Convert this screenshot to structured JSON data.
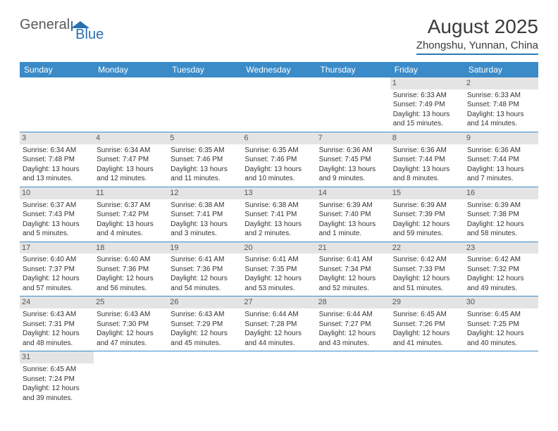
{
  "logo": {
    "text1": "General",
    "text2": "Blue"
  },
  "title": "August 2025",
  "subtitle": "Zhongshu, Yunnan, China",
  "colors": {
    "header_bg": "#3b8bc8",
    "header_text": "#ffffff",
    "daynum_bg": "#e4e4e4",
    "border": "#3b8bc8",
    "logo_blue": "#2a6fb0",
    "logo_gray": "#5a5a5a"
  },
  "dayHeaders": [
    "Sunday",
    "Monday",
    "Tuesday",
    "Wednesday",
    "Thursday",
    "Friday",
    "Saturday"
  ],
  "weeks": [
    [
      null,
      null,
      null,
      null,
      null,
      {
        "n": "1",
        "sr": "Sunrise: 6:33 AM",
        "ss": "Sunset: 7:49 PM",
        "dl": "Daylight: 13 hours and 15 minutes."
      },
      {
        "n": "2",
        "sr": "Sunrise: 6:33 AM",
        "ss": "Sunset: 7:48 PM",
        "dl": "Daylight: 13 hours and 14 minutes."
      }
    ],
    [
      {
        "n": "3",
        "sr": "Sunrise: 6:34 AM",
        "ss": "Sunset: 7:48 PM",
        "dl": "Daylight: 13 hours and 13 minutes."
      },
      {
        "n": "4",
        "sr": "Sunrise: 6:34 AM",
        "ss": "Sunset: 7:47 PM",
        "dl": "Daylight: 13 hours and 12 minutes."
      },
      {
        "n": "5",
        "sr": "Sunrise: 6:35 AM",
        "ss": "Sunset: 7:46 PM",
        "dl": "Daylight: 13 hours and 11 minutes."
      },
      {
        "n": "6",
        "sr": "Sunrise: 6:35 AM",
        "ss": "Sunset: 7:46 PM",
        "dl": "Daylight: 13 hours and 10 minutes."
      },
      {
        "n": "7",
        "sr": "Sunrise: 6:36 AM",
        "ss": "Sunset: 7:45 PM",
        "dl": "Daylight: 13 hours and 9 minutes."
      },
      {
        "n": "8",
        "sr": "Sunrise: 6:36 AM",
        "ss": "Sunset: 7:44 PM",
        "dl": "Daylight: 13 hours and 8 minutes."
      },
      {
        "n": "9",
        "sr": "Sunrise: 6:36 AM",
        "ss": "Sunset: 7:44 PM",
        "dl": "Daylight: 13 hours and 7 minutes."
      }
    ],
    [
      {
        "n": "10",
        "sr": "Sunrise: 6:37 AM",
        "ss": "Sunset: 7:43 PM",
        "dl": "Daylight: 13 hours and 5 minutes."
      },
      {
        "n": "11",
        "sr": "Sunrise: 6:37 AM",
        "ss": "Sunset: 7:42 PM",
        "dl": "Daylight: 13 hours and 4 minutes."
      },
      {
        "n": "12",
        "sr": "Sunrise: 6:38 AM",
        "ss": "Sunset: 7:41 PM",
        "dl": "Daylight: 13 hours and 3 minutes."
      },
      {
        "n": "13",
        "sr": "Sunrise: 6:38 AM",
        "ss": "Sunset: 7:41 PM",
        "dl": "Daylight: 13 hours and 2 minutes."
      },
      {
        "n": "14",
        "sr": "Sunrise: 6:39 AM",
        "ss": "Sunset: 7:40 PM",
        "dl": "Daylight: 13 hours and 1 minute."
      },
      {
        "n": "15",
        "sr": "Sunrise: 6:39 AM",
        "ss": "Sunset: 7:39 PM",
        "dl": "Daylight: 12 hours and 59 minutes."
      },
      {
        "n": "16",
        "sr": "Sunrise: 6:39 AM",
        "ss": "Sunset: 7:38 PM",
        "dl": "Daylight: 12 hours and 58 minutes."
      }
    ],
    [
      {
        "n": "17",
        "sr": "Sunrise: 6:40 AM",
        "ss": "Sunset: 7:37 PM",
        "dl": "Daylight: 12 hours and 57 minutes."
      },
      {
        "n": "18",
        "sr": "Sunrise: 6:40 AM",
        "ss": "Sunset: 7:36 PM",
        "dl": "Daylight: 12 hours and 56 minutes."
      },
      {
        "n": "19",
        "sr": "Sunrise: 6:41 AM",
        "ss": "Sunset: 7:36 PM",
        "dl": "Daylight: 12 hours and 54 minutes."
      },
      {
        "n": "20",
        "sr": "Sunrise: 6:41 AM",
        "ss": "Sunset: 7:35 PM",
        "dl": "Daylight: 12 hours and 53 minutes."
      },
      {
        "n": "21",
        "sr": "Sunrise: 6:41 AM",
        "ss": "Sunset: 7:34 PM",
        "dl": "Daylight: 12 hours and 52 minutes."
      },
      {
        "n": "22",
        "sr": "Sunrise: 6:42 AM",
        "ss": "Sunset: 7:33 PM",
        "dl": "Daylight: 12 hours and 51 minutes."
      },
      {
        "n": "23",
        "sr": "Sunrise: 6:42 AM",
        "ss": "Sunset: 7:32 PM",
        "dl": "Daylight: 12 hours and 49 minutes."
      }
    ],
    [
      {
        "n": "24",
        "sr": "Sunrise: 6:43 AM",
        "ss": "Sunset: 7:31 PM",
        "dl": "Daylight: 12 hours and 48 minutes."
      },
      {
        "n": "25",
        "sr": "Sunrise: 6:43 AM",
        "ss": "Sunset: 7:30 PM",
        "dl": "Daylight: 12 hours and 47 minutes."
      },
      {
        "n": "26",
        "sr": "Sunrise: 6:43 AM",
        "ss": "Sunset: 7:29 PM",
        "dl": "Daylight: 12 hours and 45 minutes."
      },
      {
        "n": "27",
        "sr": "Sunrise: 6:44 AM",
        "ss": "Sunset: 7:28 PM",
        "dl": "Daylight: 12 hours and 44 minutes."
      },
      {
        "n": "28",
        "sr": "Sunrise: 6:44 AM",
        "ss": "Sunset: 7:27 PM",
        "dl": "Daylight: 12 hours and 43 minutes."
      },
      {
        "n": "29",
        "sr": "Sunrise: 6:45 AM",
        "ss": "Sunset: 7:26 PM",
        "dl": "Daylight: 12 hours and 41 minutes."
      },
      {
        "n": "30",
        "sr": "Sunrise: 6:45 AM",
        "ss": "Sunset: 7:25 PM",
        "dl": "Daylight: 12 hours and 40 minutes."
      }
    ],
    [
      {
        "n": "31",
        "sr": "Sunrise: 6:45 AM",
        "ss": "Sunset: 7:24 PM",
        "dl": "Daylight: 12 hours and 39 minutes."
      },
      null,
      null,
      null,
      null,
      null,
      null
    ]
  ]
}
